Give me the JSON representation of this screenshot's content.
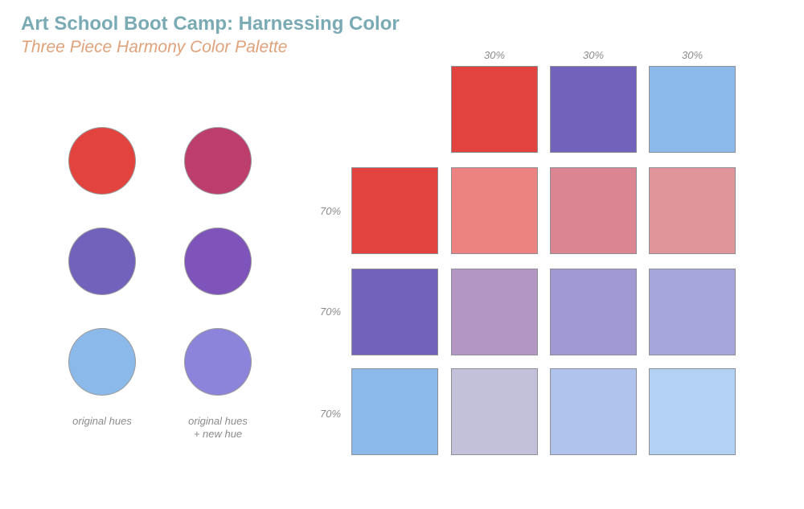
{
  "header": {
    "title": "Art School Boot Camp: Harnessing Color",
    "subtitle": "Three Piece Harmony Color Palette"
  },
  "circles": {
    "original": [
      "#e3433e",
      "#7262bb",
      "#8ab9ea"
    ],
    "with_new": [
      "#bd3e6d",
      "#7e54ba",
      "#8c84da"
    ],
    "caption_original": "original hues",
    "caption_new_line1": "original hues",
    "caption_new_line2": "+ new hue"
  },
  "grid": {
    "column_labels": [
      "30%",
      "30%",
      "30%"
    ],
    "row_labels": [
      "70%",
      "70%",
      "70%"
    ],
    "top_row": [
      "#e3433e",
      "#7262bb",
      "#8ab9ea"
    ],
    "rows": [
      [
        "#e3433e",
        "#ec8381",
        "#dc8592",
        "#df9599"
      ],
      [
        "#7262bb",
        "#b496c4",
        "#a199d4",
        "#a4a6dc"
      ],
      [
        "#8ab9ea",
        "#c2c1d9",
        "#afc3ec",
        "#b3d1f4"
      ]
    ]
  }
}
